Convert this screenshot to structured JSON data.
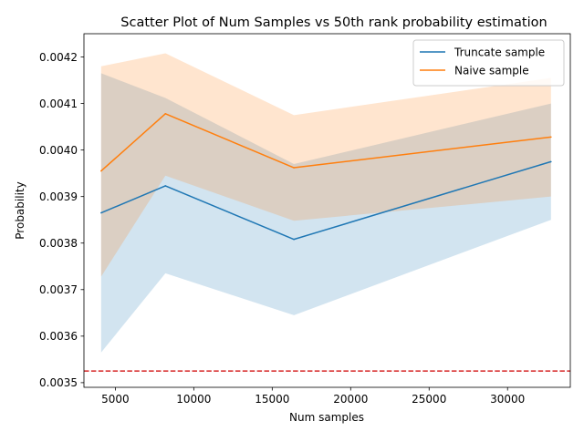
{
  "chart_data": {
    "type": "line",
    "title": "Scatter Plot of Num Samples vs 50th rank probability estimation",
    "xlabel": "Num samples",
    "ylabel": "Probability",
    "xlim": [
      3000,
      34000
    ],
    "ylim": [
      0.00349,
      0.00425
    ],
    "xticks": [
      {
        "value": 5000,
        "label": "5000"
      },
      {
        "value": 10000,
        "label": "10000"
      },
      {
        "value": 15000,
        "label": "15000"
      },
      {
        "value": 20000,
        "label": "20000"
      },
      {
        "value": 25000,
        "label": "25000"
      },
      {
        "value": 30000,
        "label": "30000"
      }
    ],
    "yticks": [
      {
        "value": 0.0035,
        "label": "0.0035"
      },
      {
        "value": 0.0036,
        "label": "0.0036"
      },
      {
        "value": 0.0037,
        "label": "0.0037"
      },
      {
        "value": 0.0038,
        "label": "0.0038"
      },
      {
        "value": 0.0039,
        "label": "0.0039"
      },
      {
        "value": 0.004,
        "label": "0.0040"
      },
      {
        "value": 0.0041,
        "label": "0.0041"
      },
      {
        "value": 0.0042,
        "label": "0.0042"
      }
    ],
    "x": [
      4096,
      8192,
      16384,
      32768
    ],
    "series": [
      {
        "name": "Truncate sample",
        "color": "#1f77b4",
        "band_color": "#1f77b4",
        "values": [
          0.003865,
          0.003923,
          0.003808,
          0.003975
        ],
        "lower": [
          0.003565,
          0.003735,
          0.003645,
          0.00385
        ],
        "upper": [
          0.004165,
          0.004112,
          0.00397,
          0.0041
        ]
      },
      {
        "name": "Naive sample",
        "color": "#ff7f0e",
        "band_color": "#ff7f0e",
        "values": [
          0.003955,
          0.004078,
          0.003962,
          0.004028
        ],
        "lower": [
          0.003728,
          0.003945,
          0.003848,
          0.0039
        ],
        "upper": [
          0.00418,
          0.004208,
          0.004075,
          0.004155
        ]
      }
    ],
    "reference_line": {
      "value": 0.003525,
      "color": "#d62728",
      "style": "dashed"
    },
    "grid": false,
    "legend_position": "top-right"
  }
}
